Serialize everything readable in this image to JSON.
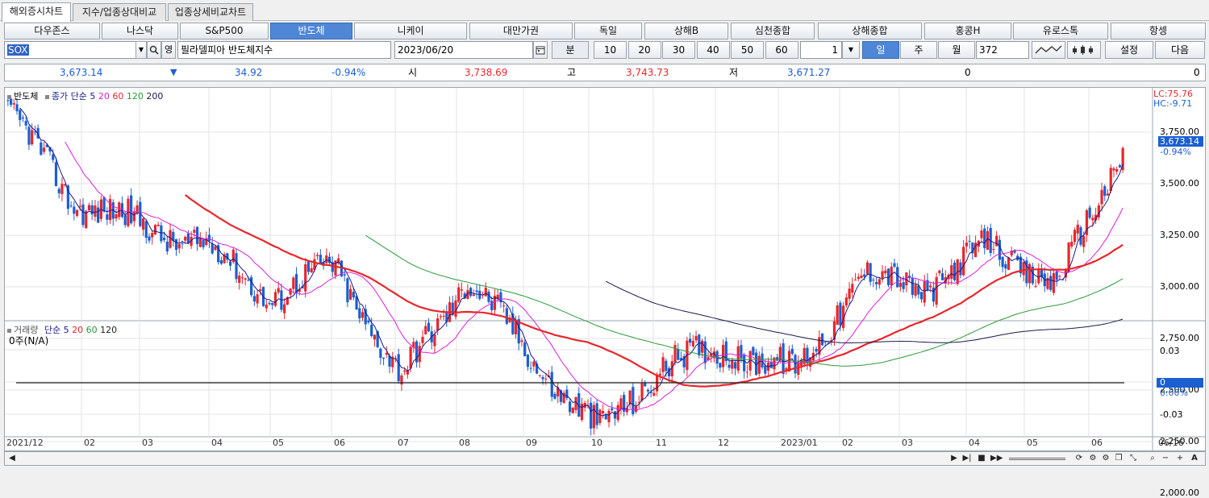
{
  "tabs": [
    "해외증시차트",
    "지수/업종상대비교",
    "업종상세비교차트"
  ],
  "markets": [
    "다우존스",
    "나스닥",
    "S&P500",
    "반도체",
    "니케이",
    "대만가권",
    "독일",
    "상해B",
    "심천종합",
    "상해종합",
    "홍콩H",
    "유로스톡",
    "항셍"
  ],
  "active_market_index": 3,
  "controls": {
    "symbol": "SOX",
    "english_toggle": "영",
    "index_name": "필라델피아 반도체지수",
    "date": "2023/06/20",
    "minute_label": "분",
    "minute_options": [
      "10",
      "20",
      "30",
      "40",
      "50",
      "60"
    ],
    "spin_value": "1",
    "period_day": "일",
    "period_week": "주",
    "period_month": "월",
    "count": "372",
    "settings": "설정",
    "next": "다음"
  },
  "price": {
    "close": "3,673.14",
    "change_arrow": "▼",
    "change": "34.92",
    "change_pct": "-0.94%",
    "open_label": "시",
    "open": "3,738.69",
    "high_label": "고",
    "high": "3,743.73",
    "low_label": "저",
    "low": "3,671.27",
    "volume": "0",
    "extra": "0"
  },
  "price_panel": {
    "legend": {
      "name": "반도체",
      "ma_label": "종가 단순",
      "ma_periods": [
        "5",
        "20",
        "60",
        "120",
        "200"
      ]
    },
    "lc": "LC:75.76",
    "hc": "HC:-9.71",
    "last_value": "3,673.14",
    "last_change": "-0.94%",
    "y_labels": [
      "3,750.00",
      "3,500.00",
      "3,250.00",
      "3,000.00",
      "2,750.00",
      "2,500.00",
      "2,250.00",
      "2,000.00"
    ]
  },
  "volume_panel": {
    "legend_label": "거래량",
    "ma_label": "단순",
    "ma_periods": [
      "5",
      "20",
      "60",
      "120"
    ],
    "value_label": "0주(N/A)",
    "y_labels": [
      "0.03",
      "0.00%",
      "-0.03"
    ],
    "zero_badge": "0"
  },
  "x_axis": [
    "2021/12",
    "02",
    "03",
    "04",
    "05",
    "06",
    "07",
    "08",
    "09",
    "10",
    "11",
    "12",
    "2023/01",
    "02",
    "03",
    "04",
    "05",
    "06",
    "06/16"
  ],
  "colors": {
    "up": "#e8262b",
    "down": "#1b5fd1",
    "ma5": "#1a1a8c",
    "ma20": "#d81fd8",
    "ma60": "#e8262b",
    "ma120": "#2a9a3a",
    "ma200": "#1a1a4c",
    "accent": "#4f86d6"
  },
  "chart_data": {
    "type": "candlestick",
    "title": "반도체",
    "ylim": [
      2000,
      3850
    ],
    "months": [
      "2021/12",
      "02",
      "03",
      "04",
      "05",
      "06",
      "07",
      "08",
      "09",
      "10",
      "11",
      "12",
      "2023/01",
      "02",
      "03",
      "04",
      "05",
      "06"
    ],
    "monthly_close": [
      3850,
      3420,
      3300,
      3200,
      2950,
      3100,
      2550,
      3050,
      2650,
      2300,
      2620,
      2700,
      2580,
      3050,
      3000,
      3200,
      3000,
      3673.14
    ],
    "last": {
      "open": 3738.69,
      "high": 3743.73,
      "low": 3671.27,
      "close": 3673.14
    }
  },
  "scroll": {
    "left": "◀",
    "right": "▶",
    "first": "▶|",
    "stop": "■",
    "end": "▶▶",
    "zoom_out": "−",
    "zoom_in": "+",
    "font": "A"
  }
}
